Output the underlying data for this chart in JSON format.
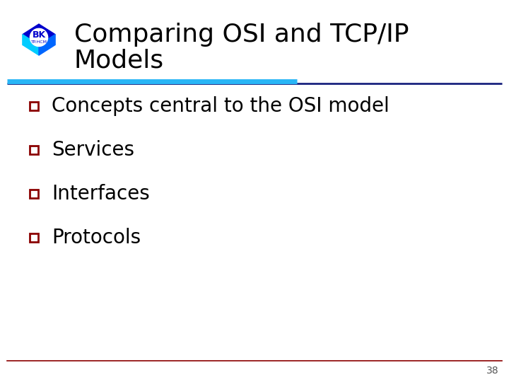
{
  "title_line1": "Comparing OSI and TCP/IP",
  "title_line2": "Models",
  "bullet_items": [
    "Concepts central to the OSI model",
    "Services",
    "Interfaces",
    "Protocols"
  ],
  "background_color": "#ffffff",
  "title_color": "#000000",
  "bullet_text_color": "#000000",
  "bullet_square_color": "#8b0000",
  "title_fontsize": 26,
  "bullet_fontsize": 20,
  "separator_color_blue": "#1a237e",
  "separator_color_cyan": "#29b6f6",
  "footer_line_color": "#8b0000",
  "page_number": "38",
  "page_number_color": "#555555",
  "logo_blue_dark": "#0000cc",
  "logo_blue_mid": "#0066ff",
  "logo_blue_light": "#00ccff",
  "logo_white": "#ffffff"
}
